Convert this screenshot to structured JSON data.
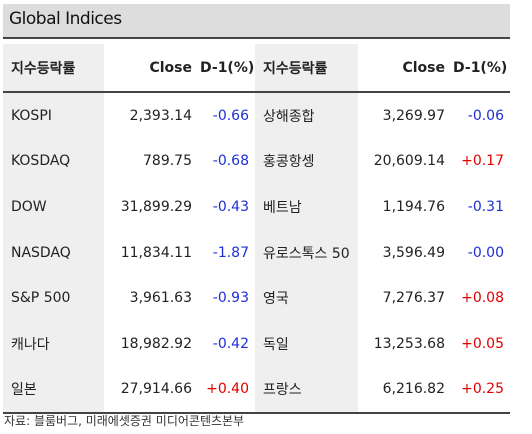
{
  "title": "Global Indices",
  "headers": {
    "name": "지수등락률",
    "close": "Close",
    "change": "D-1(%)"
  },
  "left": [
    {
      "name": "KOSPI",
      "close": "2,393.14",
      "change": "-0.66",
      "dir": "neg"
    },
    {
      "name": "KOSDAQ",
      "close": "789.75",
      "change": "-0.68",
      "dir": "neg"
    },
    {
      "name": "DOW",
      "close": "31,899.29",
      "change": "-0.43",
      "dir": "neg"
    },
    {
      "name": "NASDAQ",
      "close": "11,834.11",
      "change": "-1.87",
      "dir": "neg"
    },
    {
      "name": "S&P 500",
      "close": "3,961.63",
      "change": "-0.93",
      "dir": "neg"
    },
    {
      "name": "캐나다",
      "close": "18,982.92",
      "change": "-0.42",
      "dir": "neg"
    },
    {
      "name": "일본",
      "close": "27,914.66",
      "change": "+0.40",
      "dir": "pos"
    }
  ],
  "right": [
    {
      "name": "상해종합",
      "close": "3,269.97",
      "change": "-0.06",
      "dir": "neg"
    },
    {
      "name": "홍콩항셍",
      "close": "20,609.14",
      "change": "+0.17",
      "dir": "pos"
    },
    {
      "name": "베트남",
      "close": "1,194.76",
      "change": "-0.31",
      "dir": "neg"
    },
    {
      "name": "유로스톡스 50",
      "close": "3,596.49",
      "change": "-0.00",
      "dir": "neg"
    },
    {
      "name": "영국",
      "close": "7,276.37",
      "change": "+0.08",
      "dir": "pos"
    },
    {
      "name": "독일",
      "close": "13,253.68",
      "change": "+0.05",
      "dir": "pos"
    },
    {
      "name": "프랑스",
      "close": "6,216.82",
      "change": "+0.25",
      "dir": "pos"
    }
  ],
  "colors": {
    "positive": "#e00000",
    "negative": "#1f2fd6",
    "name_bg": "#efefef",
    "title_bg": "#dddddd"
  },
  "footnote": "자료: 블룸버그,  미래에셋증권 미디어콘텐츠본부"
}
